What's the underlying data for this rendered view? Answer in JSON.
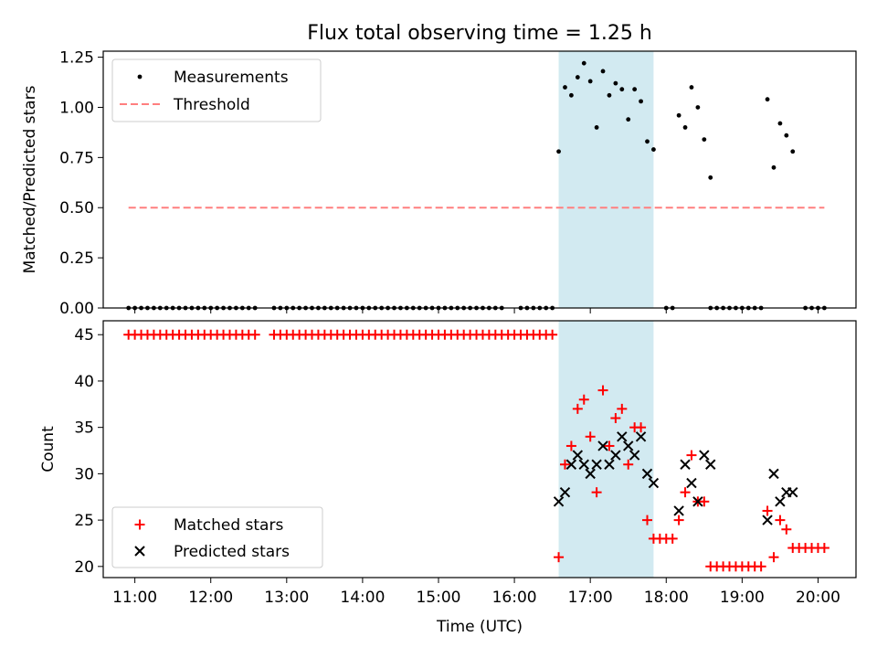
{
  "chart_data": {
    "title": "Flux total observing time = 1.25 h",
    "xlabel": "Time (UTC)",
    "x_unit": "hours UTC",
    "xlim": [
      "10:35",
      "20:30"
    ],
    "xticks": [
      "11:00",
      "12:00",
      "13:00",
      "14:00",
      "15:00",
      "16:00",
      "17:00",
      "18:00",
      "19:00",
      "20:00"
    ],
    "highlight_span": [
      "16:35",
      "17:50"
    ],
    "highlight_color": "#add8e6",
    "panels": [
      {
        "type": "scatter",
        "ylabel": "Matched/Predicted stars",
        "ylim": [
          0,
          1.28
        ],
        "yticks": [
          "0.00",
          "0.25",
          "0.50",
          "0.75",
          "1.00",
          "1.25"
        ],
        "legend_position": "top-left",
        "legend": [
          {
            "label": "Measurements",
            "marker": "dot",
            "color": "#000000"
          },
          {
            "label": "Threshold",
            "marker": "dashed-line",
            "color": "#ff7f7f"
          }
        ],
        "threshold": {
          "value": 0.5,
          "x_range": [
            "10:55",
            "20:05"
          ],
          "color": "#ff7f7f"
        },
        "series": [
          {
            "name": "Measurements",
            "color": "#000000",
            "x": [
              "16:35",
              "16:40",
              "16:45",
              "16:50",
              "16:55",
              "17:00",
              "17:05",
              "17:10",
              "17:15",
              "17:20",
              "17:25",
              "17:30",
              "17:35",
              "17:40",
              "17:45",
              "17:50",
              "18:10",
              "18:15",
              "18:20",
              "18:25",
              "18:30",
              "18:35",
              "19:20",
              "19:25",
              "19:30",
              "19:35",
              "19:40"
            ],
            "y": [
              0.78,
              1.1,
              1.06,
              1.15,
              1.22,
              1.13,
              0.9,
              1.18,
              1.06,
              1.12,
              1.09,
              0.94,
              1.09,
              1.03,
              0.83,
              0.79,
              0.96,
              0.9,
              1.1,
              1.0,
              0.84,
              0.65,
              1.04,
              0.7,
              0.92,
              0.86,
              0.78
            ]
          },
          {
            "name": "Measurements",
            "color": "#000000",
            "x_range": [
              "10:55",
              "20:05"
            ],
            "step_minutes": 5,
            "y": 0,
            "gaps": [
              [
                "12:40",
                "12:45"
              ],
              [
                "15:55",
                "16:00"
              ],
              [
                "16:35",
                "17:55"
              ],
              [
                "18:10",
                "18:30"
              ],
              [
                "19:20",
                "19:45"
              ]
            ]
          }
        ]
      },
      {
        "type": "scatter",
        "ylabel": "Count",
        "ylim": [
          18.8,
          46.5
        ],
        "yticks": [
          "20",
          "25",
          "30",
          "35",
          "40",
          "45"
        ],
        "legend_position": "bottom-left",
        "legend": [
          {
            "label": "Matched stars",
            "marker": "plus",
            "color": "#ff0000"
          },
          {
            "label": "Predicted stars",
            "marker": "x",
            "color": "#000000"
          }
        ],
        "series": [
          {
            "name": "Matched stars",
            "marker": "plus",
            "color": "#ff0000",
            "x": [
              "16:35",
              "16:40",
              "16:45",
              "16:50",
              "16:55",
              "17:00",
              "17:05",
              "17:10",
              "17:15",
              "17:20",
              "17:25",
              "17:30",
              "17:35",
              "17:40",
              "17:45",
              "17:50",
              "17:55",
              "18:00",
              "18:05",
              "18:10",
              "18:15",
              "18:20",
              "18:25",
              "18:30",
              "19:20",
              "19:25",
              "19:30",
              "19:35",
              "19:40",
              "19:45",
              "19:50",
              "19:55",
              "20:00",
              "20:05"
            ],
            "y": [
              21,
              31,
              33,
              37,
              38,
              34,
              28,
              39,
              33,
              36,
              37,
              31,
              35,
              35,
              25,
              23,
              23,
              23,
              23,
              25,
              28,
              32,
              27,
              27,
              26,
              21,
              25,
              24,
              22,
              22,
              22,
              22,
              22,
              22
            ]
          },
          {
            "name": "Matched stars",
            "marker": "plus",
            "color": "#ff0000",
            "x_range": [
              "10:55",
              "16:30"
            ],
            "step_minutes": 5,
            "y": 45,
            "gaps": [
              [
                "12:40",
                "12:45"
              ]
            ]
          },
          {
            "name": "Matched stars",
            "marker": "plus",
            "color": "#ff0000",
            "x_range": [
              "18:35",
              "19:15"
            ],
            "step_minutes": 5,
            "y": 20
          },
          {
            "name": "Predicted stars",
            "marker": "x",
            "color": "#000000",
            "x": [
              "16:35",
              "16:40",
              "16:45",
              "16:50",
              "16:55",
              "17:00",
              "17:05",
              "17:10",
              "17:15",
              "17:20",
              "17:25",
              "17:30",
              "17:35",
              "17:40",
              "17:45",
              "17:50",
              "18:10",
              "18:15",
              "18:20",
              "18:25",
              "18:30",
              "18:35",
              "19:20",
              "19:25",
              "19:30",
              "19:35",
              "19:40"
            ],
            "y": [
              27,
              28,
              31,
              32,
              31,
              30,
              31,
              33,
              31,
              32,
              34,
              33,
              32,
              34,
              30,
              29,
              26,
              31,
              29,
              27,
              32,
              31,
              25,
              30,
              27,
              28,
              28
            ]
          }
        ]
      }
    ]
  }
}
